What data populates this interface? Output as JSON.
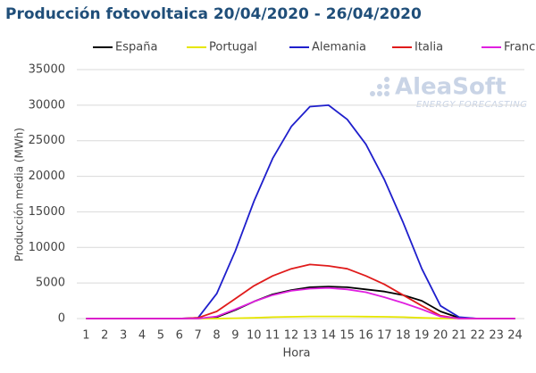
{
  "chart_data": {
    "type": "line",
    "title": "Producción fotovoltaica 20/04/2020 - 26/04/2020",
    "x_label": "Hora",
    "y_label": "Producción media (MWh)",
    "watermark": {
      "name": "AleaSoft",
      "tagline": "ENERGY FORECASTING"
    },
    "categories": [
      "1",
      "2",
      "3",
      "4",
      "5",
      "6",
      "7",
      "8",
      "9",
      "10",
      "11",
      "12",
      "13",
      "14",
      "15",
      "16",
      "17",
      "18",
      "19",
      "20",
      "21",
      "22",
      "23",
      "24"
    ],
    "ylim": [
      0,
      35000
    ],
    "yticks": [
      0,
      5000,
      10000,
      15000,
      20000,
      25000,
      30000,
      35000
    ],
    "grid": true,
    "series": [
      {
        "name": "España",
        "color": "#000000",
        "values": [
          0,
          0,
          0,
          0,
          0,
          0,
          0,
          200,
          1200,
          2400,
          3400,
          4000,
          4400,
          4500,
          4400,
          4100,
          3800,
          3300,
          2500,
          1000,
          100,
          0,
          0,
          0
        ]
      },
      {
        "name": "Portugal",
        "color": "#e6e600",
        "values": [
          0,
          0,
          0,
          0,
          0,
          0,
          0,
          0,
          50,
          100,
          200,
          250,
          300,
          300,
          300,
          280,
          250,
          200,
          100,
          30,
          0,
          0,
          0,
          0
        ]
      },
      {
        "name": "Alemania",
        "color": "#1f1fcc",
        "values": [
          0,
          0,
          0,
          0,
          0,
          0,
          100,
          3500,
          9500,
          16500,
          22500,
          27000,
          29800,
          30000,
          28000,
          24500,
          19500,
          13500,
          7000,
          1800,
          200,
          0,
          0,
          0
        ]
      },
      {
        "name": "Italia",
        "color": "#e01b1b",
        "values": [
          0,
          0,
          0,
          0,
          0,
          0,
          100,
          1000,
          2800,
          4600,
          6000,
          7000,
          7600,
          7400,
          7000,
          6000,
          4800,
          3300,
          1800,
          400,
          0,
          0,
          0,
          0
        ]
      },
      {
        "name": "Francia",
        "color": "#e020e0",
        "values": [
          0,
          0,
          0,
          0,
          0,
          0,
          0,
          300,
          1300,
          2400,
          3300,
          3900,
          4200,
          4300,
          4100,
          3700,
          3000,
          2200,
          1300,
          300,
          0,
          0,
          0,
          0
        ]
      }
    ]
  }
}
